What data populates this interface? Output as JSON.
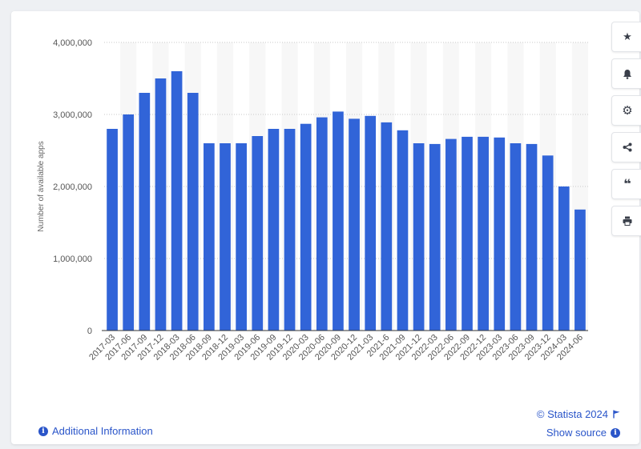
{
  "chart_data": {
    "type": "bar",
    "ylabel": "Number of available apps",
    "xlabel": "",
    "ylim": [
      0,
      4000000
    ],
    "yticks": [
      0,
      1000000,
      2000000,
      3000000,
      4000000
    ],
    "ytick_labels": [
      "0",
      "1,000,000",
      "2,000,000",
      "3,000,000",
      "4,000,000"
    ],
    "grid": true,
    "bar_color": "#3164d8",
    "categories": [
      "2017-03",
      "2017-06",
      "2017-09",
      "2017-12",
      "2018-03",
      "2018-06",
      "2018-09",
      "2018-12",
      "2019-03",
      "2019-06",
      "2019-09",
      "2019-12",
      "2020-03",
      "2020-06",
      "2020-09",
      "2020-12",
      "2021-03",
      "2021-6",
      "2021-09",
      "2021-12",
      "2022-03",
      "2022-06",
      "2022-09",
      "2022-12",
      "2023-03",
      "2023-06",
      "2023-09",
      "2023-12",
      "2024-03",
      "2024-06"
    ],
    "values": [
      2800000,
      3000000,
      3300000,
      3500000,
      3600000,
      3300000,
      2600000,
      2600000,
      2600000,
      2700000,
      2800000,
      2800000,
      2870000,
      2960000,
      3040000,
      2940000,
      2980000,
      2890000,
      2780000,
      2600000,
      2590000,
      2660000,
      2690000,
      2690000,
      2680000,
      2600000,
      2590000,
      2430000,
      2000000,
      1680000
    ]
  },
  "toolbar": {
    "buttons": [
      {
        "name": "favorite-button",
        "icon": "star-icon",
        "glyph": "★"
      },
      {
        "name": "notification-button",
        "icon": "bell-icon",
        "glyph": "🔔"
      },
      {
        "name": "settings-button",
        "icon": "gear-icon",
        "glyph": "⚙"
      },
      {
        "name": "share-button",
        "icon": "share-icon",
        "glyph": "share"
      },
      {
        "name": "cite-button",
        "icon": "quote-icon",
        "glyph": "❝"
      },
      {
        "name": "print-button",
        "icon": "printer-icon",
        "glyph": "print"
      }
    ]
  },
  "footer": {
    "additional_info": "Additional Information",
    "copyright": "© Statista 2024",
    "show_source": "Show source"
  }
}
